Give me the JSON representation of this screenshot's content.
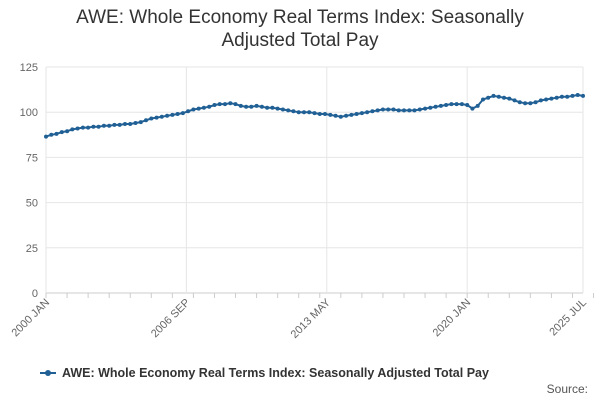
{
  "chart_data": {
    "type": "line",
    "title_lines": [
      "AWE: Whole Economy Real Terms Index: Seasonally",
      "Adjusted Total Pay"
    ],
    "xlabel": "",
    "ylabel": "",
    "ylim": [
      0,
      125
    ],
    "y_ticks": [
      0,
      25,
      50,
      75,
      100,
      125
    ],
    "x_ticks": [
      {
        "label": "2000 JAN",
        "x": "2000-01"
      },
      {
        "label": "2006 SEP",
        "x": "2006-09"
      },
      {
        "label": "2013 MAY",
        "x": "2013-05"
      },
      {
        "label": "2020 JAN",
        "x": "2020-01"
      },
      {
        "label": "2025 JUL",
        "x": "2025-07"
      }
    ],
    "grid": true,
    "legend_position": "bottom",
    "series": [
      {
        "name": "AWE: Whole Economy Real Terms Index: Seasonally Adjusted Total Pay",
        "color": "#206095",
        "points": [
          [
            "2000-01",
            86.5
          ],
          [
            "2000-04",
            87.5
          ],
          [
            "2000-07",
            88.0
          ],
          [
            "2000-10",
            89.0
          ],
          [
            "2001-01",
            89.5
          ],
          [
            "2001-04",
            90.5
          ],
          [
            "2001-07",
            91.0
          ],
          [
            "2001-10",
            91.5
          ],
          [
            "2002-01",
            91.5
          ],
          [
            "2002-04",
            92.0
          ],
          [
            "2002-07",
            92.0
          ],
          [
            "2002-10",
            92.5
          ],
          [
            "2003-01",
            92.5
          ],
          [
            "2003-04",
            93.0
          ],
          [
            "2003-07",
            93.0
          ],
          [
            "2003-10",
            93.5
          ],
          [
            "2004-01",
            93.5
          ],
          [
            "2004-04",
            94.0
          ],
          [
            "2004-07",
            94.5
          ],
          [
            "2004-10",
            95.5
          ],
          [
            "2005-01",
            96.5
          ],
          [
            "2005-04",
            97.0
          ],
          [
            "2005-07",
            97.5
          ],
          [
            "2005-10",
            98.0
          ],
          [
            "2006-01",
            98.5
          ],
          [
            "2006-04",
            99.0
          ],
          [
            "2006-07",
            99.5
          ],
          [
            "2006-10",
            100.5
          ],
          [
            "2007-01",
            101.5
          ],
          [
            "2007-04",
            102.0
          ],
          [
            "2007-07",
            102.5
          ],
          [
            "2007-10",
            103.0
          ],
          [
            "2008-01",
            104.0
          ],
          [
            "2008-04",
            104.5
          ],
          [
            "2008-07",
            104.5
          ],
          [
            "2008-10",
            105.0
          ],
          [
            "2009-01",
            104.5
          ],
          [
            "2009-04",
            103.5
          ],
          [
            "2009-07",
            103.0
          ],
          [
            "2009-10",
            103.0
          ],
          [
            "2010-01",
            103.5
          ],
          [
            "2010-04",
            103.0
          ],
          [
            "2010-07",
            102.5
          ],
          [
            "2010-10",
            102.5
          ],
          [
            "2011-01",
            102.0
          ],
          [
            "2011-04",
            101.5
          ],
          [
            "2011-07",
            101.0
          ],
          [
            "2011-10",
            100.5
          ],
          [
            "2012-01",
            100.0
          ],
          [
            "2012-04",
            100.0
          ],
          [
            "2012-07",
            100.0
          ],
          [
            "2012-10",
            99.5
          ],
          [
            "2013-01",
            99.0
          ],
          [
            "2013-04",
            99.0
          ],
          [
            "2013-07",
            98.5
          ],
          [
            "2013-10",
            98.0
          ],
          [
            "2014-01",
            97.5
          ],
          [
            "2014-04",
            98.0
          ],
          [
            "2014-07",
            98.5
          ],
          [
            "2014-10",
            99.0
          ],
          [
            "2015-01",
            99.5
          ],
          [
            "2015-04",
            100.0
          ],
          [
            "2015-07",
            100.5
          ],
          [
            "2015-10",
            101.0
          ],
          [
            "2016-01",
            101.5
          ],
          [
            "2016-04",
            101.5
          ],
          [
            "2016-07",
            101.5
          ],
          [
            "2016-10",
            101.0
          ],
          [
            "2017-01",
            101.0
          ],
          [
            "2017-04",
            101.0
          ],
          [
            "2017-07",
            101.0
          ],
          [
            "2017-10",
            101.5
          ],
          [
            "2018-01",
            102.0
          ],
          [
            "2018-04",
            102.5
          ],
          [
            "2018-07",
            103.0
          ],
          [
            "2018-10",
            103.5
          ],
          [
            "2019-01",
            104.0
          ],
          [
            "2019-04",
            104.5
          ],
          [
            "2019-07",
            104.5
          ],
          [
            "2019-10",
            104.5
          ],
          [
            "2020-01",
            104.0
          ],
          [
            "2020-04",
            102.0
          ],
          [
            "2020-07",
            103.5
          ],
          [
            "2020-10",
            107.0
          ],
          [
            "2021-01",
            108.0
          ],
          [
            "2021-04",
            109.0
          ],
          [
            "2021-07",
            108.5
          ],
          [
            "2021-10",
            108.0
          ],
          [
            "2022-01",
            107.5
          ],
          [
            "2022-04",
            106.5
          ],
          [
            "2022-07",
            105.5
          ],
          [
            "2022-10",
            105.0
          ],
          [
            "2023-01",
            105.0
          ],
          [
            "2023-04",
            105.5
          ],
          [
            "2023-07",
            106.5
          ],
          [
            "2023-10",
            107.0
          ],
          [
            "2024-01",
            107.5
          ],
          [
            "2024-04",
            108.0
          ],
          [
            "2024-07",
            108.5
          ],
          [
            "2024-10",
            108.5
          ],
          [
            "2025-01",
            109.0
          ],
          [
            "2025-04",
            109.5
          ],
          [
            "2025-07",
            109.0
          ]
        ]
      }
    ]
  },
  "source_label": "Source:"
}
